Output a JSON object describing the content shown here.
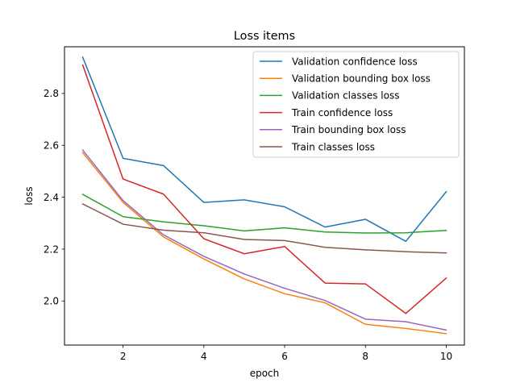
{
  "chart_data": {
    "type": "line",
    "title": "Loss items",
    "xlabel": "epoch",
    "ylabel": "loss",
    "x": [
      1,
      2,
      3,
      4,
      5,
      6,
      7,
      8,
      9,
      10
    ],
    "xlim": [
      0.55,
      10.45
    ],
    "ylim": [
      1.83,
      2.98
    ],
    "xticks": [
      2,
      4,
      6,
      8,
      10
    ],
    "xtick_labels": [
      "2",
      "4",
      "6",
      "8",
      "10"
    ],
    "yticks": [
      2.0,
      2.2,
      2.4,
      2.6,
      2.8
    ],
    "ytick_labels": [
      "2.0",
      "2.2",
      "2.4",
      "2.6",
      "2.8"
    ],
    "grid": false,
    "legend_position": "top-right",
    "series": [
      {
        "name": "Validation confidence loss",
        "color": "#1f77b4",
        "values": [
          2.94,
          2.55,
          2.522,
          2.38,
          2.39,
          2.363,
          2.285,
          2.315,
          2.23,
          2.421
        ]
      },
      {
        "name": "Validation bounding box loss",
        "color": "#ff7f0e",
        "values": [
          2.572,
          2.38,
          2.247,
          2.162,
          2.085,
          2.028,
          1.993,
          1.91,
          1.894,
          1.874
        ]
      },
      {
        "name": "Validation classes loss",
        "color": "#2ca02c",
        "values": [
          2.411,
          2.325,
          2.305,
          2.29,
          2.27,
          2.282,
          2.266,
          2.262,
          2.263,
          2.272
        ]
      },
      {
        "name": "Train confidence loss",
        "color": "#d62728",
        "values": [
          2.91,
          2.47,
          2.412,
          2.24,
          2.182,
          2.21,
          2.069,
          2.066,
          1.952,
          2.088
        ]
      },
      {
        "name": "Train bounding box loss",
        "color": "#9467bd",
        "values": [
          2.582,
          2.387,
          2.255,
          2.172,
          2.104,
          2.049,
          2.002,
          1.93,
          1.92,
          1.888
        ]
      },
      {
        "name": "Train classes loss",
        "color": "#8c564b",
        "values": [
          2.374,
          2.296,
          2.273,
          2.263,
          2.237,
          2.233,
          2.207,
          2.197,
          2.19,
          2.185
        ]
      }
    ]
  }
}
